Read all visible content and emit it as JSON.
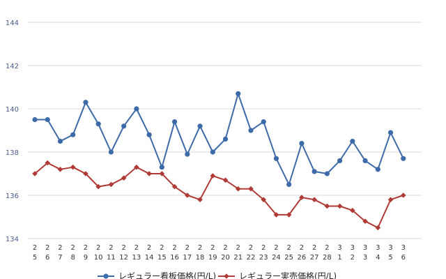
{
  "chart_data": {
    "type": "line",
    "title": "",
    "xlabel": "",
    "ylabel": "",
    "ylim": [
      134,
      144
    ],
    "yticks": [
      134,
      136,
      138,
      140,
      142,
      144
    ],
    "grid": true,
    "legend_position": "bottom",
    "categories": [
      {
        "top": "2",
        "bottom": "5"
      },
      {
        "top": "2",
        "bottom": "6"
      },
      {
        "top": "2",
        "bottom": "7"
      },
      {
        "top": "2",
        "bottom": "8"
      },
      {
        "top": "2",
        "bottom": "9"
      },
      {
        "top": "2",
        "bottom": "10"
      },
      {
        "top": "2",
        "bottom": "11"
      },
      {
        "top": "2",
        "bottom": "12"
      },
      {
        "top": "2",
        "bottom": "13"
      },
      {
        "top": "2",
        "bottom": "14"
      },
      {
        "top": "2",
        "bottom": "15"
      },
      {
        "top": "2",
        "bottom": "16"
      },
      {
        "top": "2",
        "bottom": "17"
      },
      {
        "top": "2",
        "bottom": "18"
      },
      {
        "top": "2",
        "bottom": "19"
      },
      {
        "top": "2",
        "bottom": "20"
      },
      {
        "top": "2",
        "bottom": "21"
      },
      {
        "top": "2",
        "bottom": "22"
      },
      {
        "top": "2",
        "bottom": "23"
      },
      {
        "top": "2",
        "bottom": "24"
      },
      {
        "top": "2",
        "bottom": "25"
      },
      {
        "top": "2",
        "bottom": "26"
      },
      {
        "top": "2",
        "bottom": "27"
      },
      {
        "top": "2",
        "bottom": "28"
      },
      {
        "top": "3",
        "bottom": "1"
      },
      {
        "top": "3",
        "bottom": "2"
      },
      {
        "top": "3",
        "bottom": "3"
      },
      {
        "top": "3",
        "bottom": "4"
      },
      {
        "top": "3",
        "bottom": "5"
      },
      {
        "top": "3",
        "bottom": "6"
      }
    ],
    "series": [
      {
        "name": "レギュラー看板価格(円/L)",
        "color": "#3d6aa8",
        "marker": "circle",
        "values": [
          139.5,
          139.5,
          138.5,
          138.8,
          140.3,
          139.3,
          138.0,
          139.2,
          140.0,
          138.8,
          137.3,
          139.4,
          137.9,
          139.2,
          138.0,
          138.6,
          140.7,
          139.0,
          139.4,
          137.7,
          136.5,
          138.4,
          137.1,
          137.0,
          137.6,
          138.5,
          137.6,
          137.2,
          138.9,
          137.7
        ]
      },
      {
        "name": "レギュラー実売価格(円/L)",
        "color": "#b03a36",
        "marker": "diamond",
        "values": [
          137.0,
          137.5,
          137.2,
          137.3,
          137.0,
          136.4,
          136.5,
          136.8,
          137.3,
          137.0,
          137.0,
          136.4,
          136.0,
          135.8,
          136.9,
          136.7,
          136.3,
          136.3,
          135.8,
          135.1,
          135.1,
          135.9,
          135.8,
          135.5,
          135.5,
          135.3,
          134.8,
          134.5,
          135.8,
          136.0
        ]
      }
    ]
  }
}
